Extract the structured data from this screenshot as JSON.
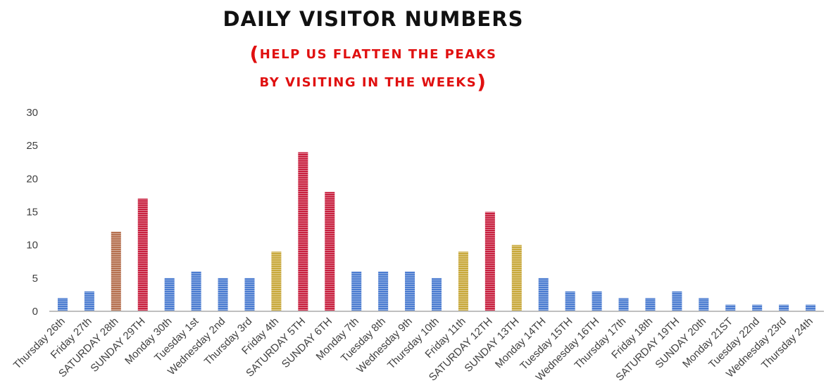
{
  "title": "DAILY VISITOR NUMBERS",
  "subtitle_line1": "HELP US FLATTEN THE PEAKS",
  "subtitle_line2": "BY VISITING IN THE WEEKS",
  "colors": {
    "low": "#4a7bd0",
    "medium": "#c8a83a",
    "high": "#c8203f",
    "saturday_28th": "#b5704f",
    "title": "#111111",
    "subtitle": "#e01010"
  },
  "chart_data": {
    "type": "bar",
    "title": "DAILY VISITOR NUMBERS",
    "ylim": [
      0,
      30
    ],
    "yticks": [
      0,
      5,
      10,
      15,
      20,
      25,
      30
    ],
    "grid": false,
    "categories": [
      "Thursday 26th",
      "Friday 27th",
      "SATURDAY 28th",
      "SUNDAY 29TH",
      "Monday 30th",
      "Tuesday 1st",
      "Wednesday 2nd",
      "Thursday 3rd",
      "Friday 4th",
      "SATURDAY 5TH",
      "SUNDAY 6TH",
      "Monday 7th",
      "Tuesday 8th",
      "Wednesday 9th",
      "Thursday 10th",
      "Friday 11th",
      "SATURDAY 12TH",
      "SUNDAY 13TH",
      "Monday 14TH",
      "Tuesday 15TH",
      "Wednesday 16TH",
      "Thursday 17th",
      "Friday 18th",
      "SATURDAY 19TH",
      "SUNDAY 20th",
      "Monday 21ST",
      "Tuesday 22nd",
      "Wednesday 23rd",
      "Thursday 24th"
    ],
    "values": [
      2,
      3,
      12,
      17,
      5,
      6,
      5,
      5,
      9,
      24,
      18,
      6,
      6,
      6,
      5,
      9,
      15,
      10,
      5,
      3,
      3,
      2,
      2,
      3,
      2,
      1,
      1,
      1,
      1
    ],
    "bar_colors": [
      "low",
      "low",
      "saturday_28th",
      "high",
      "low",
      "low",
      "low",
      "low",
      "medium",
      "high",
      "high",
      "low",
      "low",
      "low",
      "low",
      "medium",
      "high",
      "medium",
      "low",
      "low",
      "low",
      "low",
      "low",
      "low",
      "low",
      "low",
      "low",
      "low",
      "low"
    ]
  }
}
